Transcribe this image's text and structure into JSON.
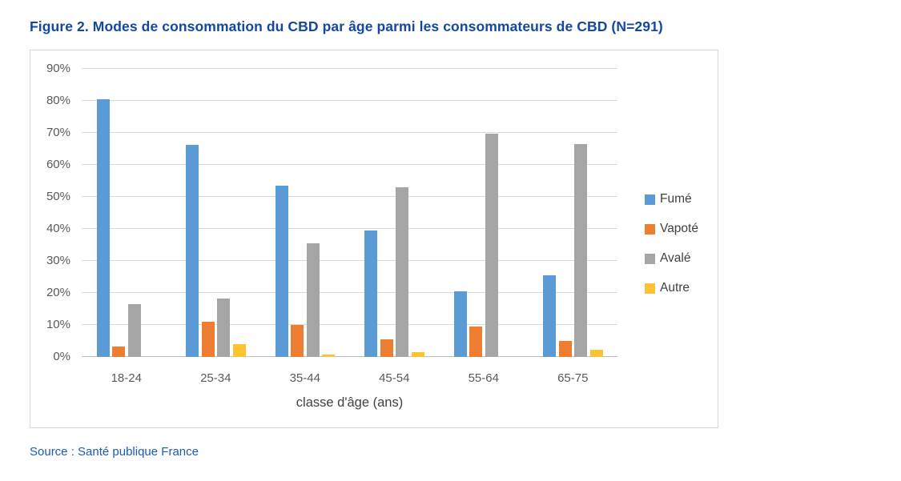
{
  "figure": {
    "title": "Figure 2. Modes de consommation du CBD par âge parmi les consommateurs de CBD (N=291)",
    "source": "Source : Santé publique France"
  },
  "chart_data": {
    "type": "bar",
    "title": "Modes de consommation du CBD par âge parmi les consommateurs de CBD (N=291)",
    "categories": [
      "18-24",
      "25-34",
      "35-44",
      "45-54",
      "55-64",
      "65-75"
    ],
    "series": [
      {
        "name": "Fumé",
        "color": "#5B9BD5",
        "values": [
          80.4,
          66.3,
          53.6,
          39.4,
          20.5,
          25.6
        ]
      },
      {
        "name": "Vapoté",
        "color": "#ED7D31",
        "values": [
          3.3,
          10.9,
          9.9,
          5.5,
          9.5,
          4.9
        ]
      },
      {
        "name": "Avalé",
        "color": "#A5A5A5",
        "values": [
          16.4,
          18.2,
          35.4,
          53.0,
          69.8,
          66.6
        ]
      },
      {
        "name": "Autre",
        "color": "#FDC231",
        "values": [
          0,
          3.9,
          0.7,
          1.4,
          0,
          2.2
        ]
      }
    ],
    "xlabel": "classe d'âge (ans)",
    "ylabel": "",
    "ylim": [
      0,
      90
    ],
    "ytick_step": 10,
    "ytick_labels": [
      "0%",
      "10%",
      "20%",
      "30%",
      "40%",
      "50%",
      "60%",
      "70%",
      "80%",
      "90%"
    ],
    "grid": true,
    "legend_position": "right",
    "colors": {
      "gridline": "#D9D9D9",
      "axis_line": "#BFBFBF",
      "tick_text": "#595959",
      "axis_title_text": "#404040",
      "figure_title_text": "#14489E",
      "source_text": "#1A5CB0"
    }
  }
}
